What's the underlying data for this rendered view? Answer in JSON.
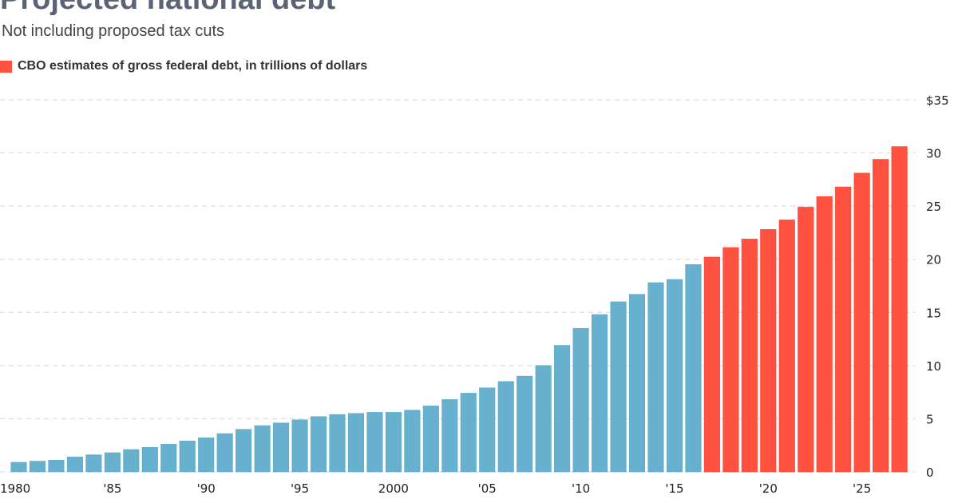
{
  "chart_data": {
    "type": "bar",
    "title": "Projected national debt",
    "subtitle": "Not including proposed tax cuts",
    "legend": [
      {
        "name": "CBO estimates of gross federal debt, in trillions of dollars",
        "color": "#ff5240"
      }
    ],
    "legend_placement": "top-left",
    "years": [
      1980,
      1981,
      1982,
      1983,
      1984,
      1985,
      1986,
      1987,
      1988,
      1989,
      1990,
      1991,
      1992,
      1993,
      1994,
      1995,
      1996,
      1997,
      1998,
      1999,
      2000,
      2001,
      2002,
      2003,
      2004,
      2005,
      2006,
      2007,
      2008,
      2009,
      2010,
      2011,
      2012,
      2013,
      2014,
      2015,
      2016,
      2017,
      2018,
      2019,
      2020,
      2021,
      2022,
      2023,
      2024,
      2025,
      2026,
      2027
    ],
    "values": [
      0.9,
      1.0,
      1.1,
      1.4,
      1.6,
      1.8,
      2.1,
      2.3,
      2.6,
      2.9,
      3.2,
      3.6,
      4.0,
      4.35,
      4.6,
      4.9,
      5.2,
      5.4,
      5.5,
      5.6,
      5.6,
      5.8,
      6.2,
      6.8,
      7.4,
      7.9,
      8.5,
      9.0,
      10.0,
      11.9,
      13.5,
      14.8,
      16.0,
      16.7,
      17.8,
      18.1,
      19.5,
      20.2,
      21.1,
      21.9,
      22.8,
      23.7,
      24.9,
      25.9,
      26.8,
      28.1,
      29.4,
      30.6
    ],
    "first_estimate_year": 2017,
    "colors": {
      "actual": "#67b1cf",
      "estimate": "#ff5240",
      "grid": "#dddddd"
    },
    "ylim": [
      0,
      35
    ],
    "y_ticks": [
      {
        "value": 0,
        "label": "0"
      },
      {
        "value": 5,
        "label": "5"
      },
      {
        "value": 10,
        "label": "10"
      },
      {
        "value": 15,
        "label": "15"
      },
      {
        "value": 20,
        "label": "20"
      },
      {
        "value": 25,
        "label": "25"
      },
      {
        "value": 30,
        "label": "30"
      },
      {
        "value": 35,
        "label": "$35"
      }
    ],
    "x_ticks": [
      {
        "year": 1980,
        "label": "1980"
      },
      {
        "year": 1985,
        "label": "'85"
      },
      {
        "year": 1990,
        "label": "'90"
      },
      {
        "year": 1995,
        "label": "'95"
      },
      {
        "year": 2000,
        "label": "2000"
      },
      {
        "year": 2005,
        "label": "'05"
      },
      {
        "year": 2010,
        "label": "'10"
      },
      {
        "year": 2015,
        "label": "'15"
      },
      {
        "year": 2020,
        "label": "'20"
      },
      {
        "year": 2025,
        "label": "'25"
      }
    ],
    "grid": true,
    "y_axis_side": "right"
  }
}
